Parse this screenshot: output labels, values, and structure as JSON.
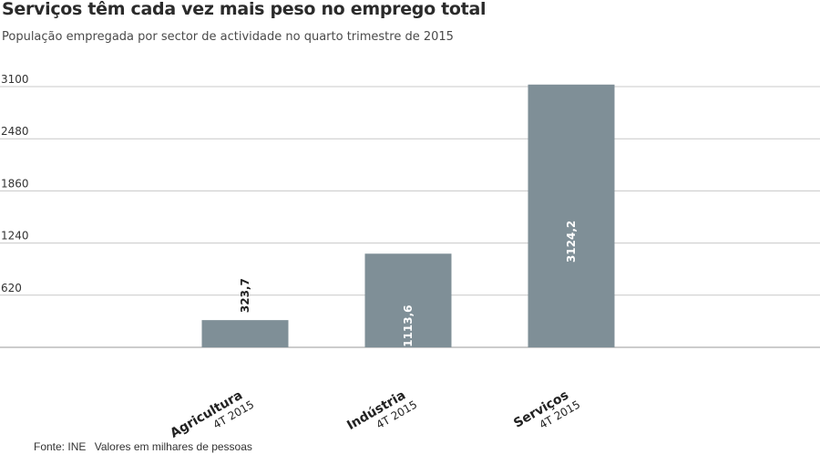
{
  "chart_data": {
    "type": "bar",
    "title": "Serviços têm cada vez mais peso no emprego total",
    "subtitle": "População empregada por sector de actividade no quarto trimestre de 2015",
    "categories": [
      "Agricultura",
      "Indústria",
      "Serviços"
    ],
    "category_sublabels": [
      "4T 2015",
      "4T 2015",
      "4T 2015"
    ],
    "values": [
      323.7,
      1113.6,
      3124.2
    ],
    "value_labels": [
      "323,7",
      "1113,6",
      "3124,2"
    ],
    "yticks": [
      620,
      1240,
      1860,
      2480,
      3100
    ],
    "ylim": [
      0,
      3100
    ],
    "xlabel": "",
    "ylabel": "",
    "grid": true,
    "legend": "none",
    "bar_color": "#7f8f97",
    "gridline_color": "#c8c8c8"
  },
  "footer": {
    "source": "Fonte: INE",
    "note": "Valores em milhares de pessoas"
  }
}
